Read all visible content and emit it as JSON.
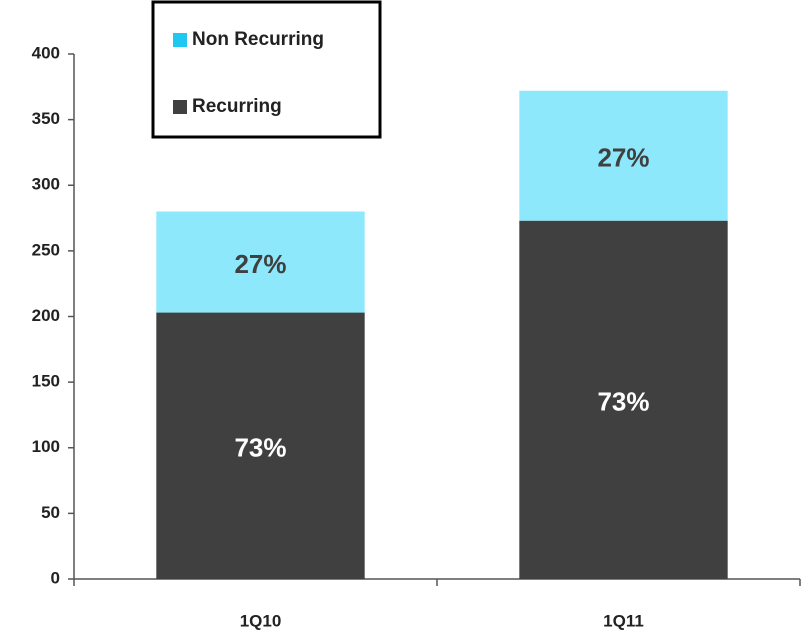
{
  "chart_data": {
    "type": "stacked_bar",
    "categories": [
      "1Q10",
      "1Q11"
    ],
    "series": [
      {
        "name": "Recurring",
        "color": "#404040",
        "values": [
          203,
          273
        ],
        "value_labels": [
          "73%",
          "73%"
        ],
        "label_color": "#ffffff"
      },
      {
        "name": "Non Recurring",
        "color": "#8ee8fc",
        "values": [
          77,
          99
        ],
        "value_labels": [
          "27%",
          "27%"
        ],
        "label_color": "#404040"
      }
    ],
    "ylim": [
      0,
      400
    ],
    "yticks": [
      0,
      50,
      100,
      150,
      200,
      250,
      300,
      350,
      400
    ],
    "legend": "top-left"
  }
}
